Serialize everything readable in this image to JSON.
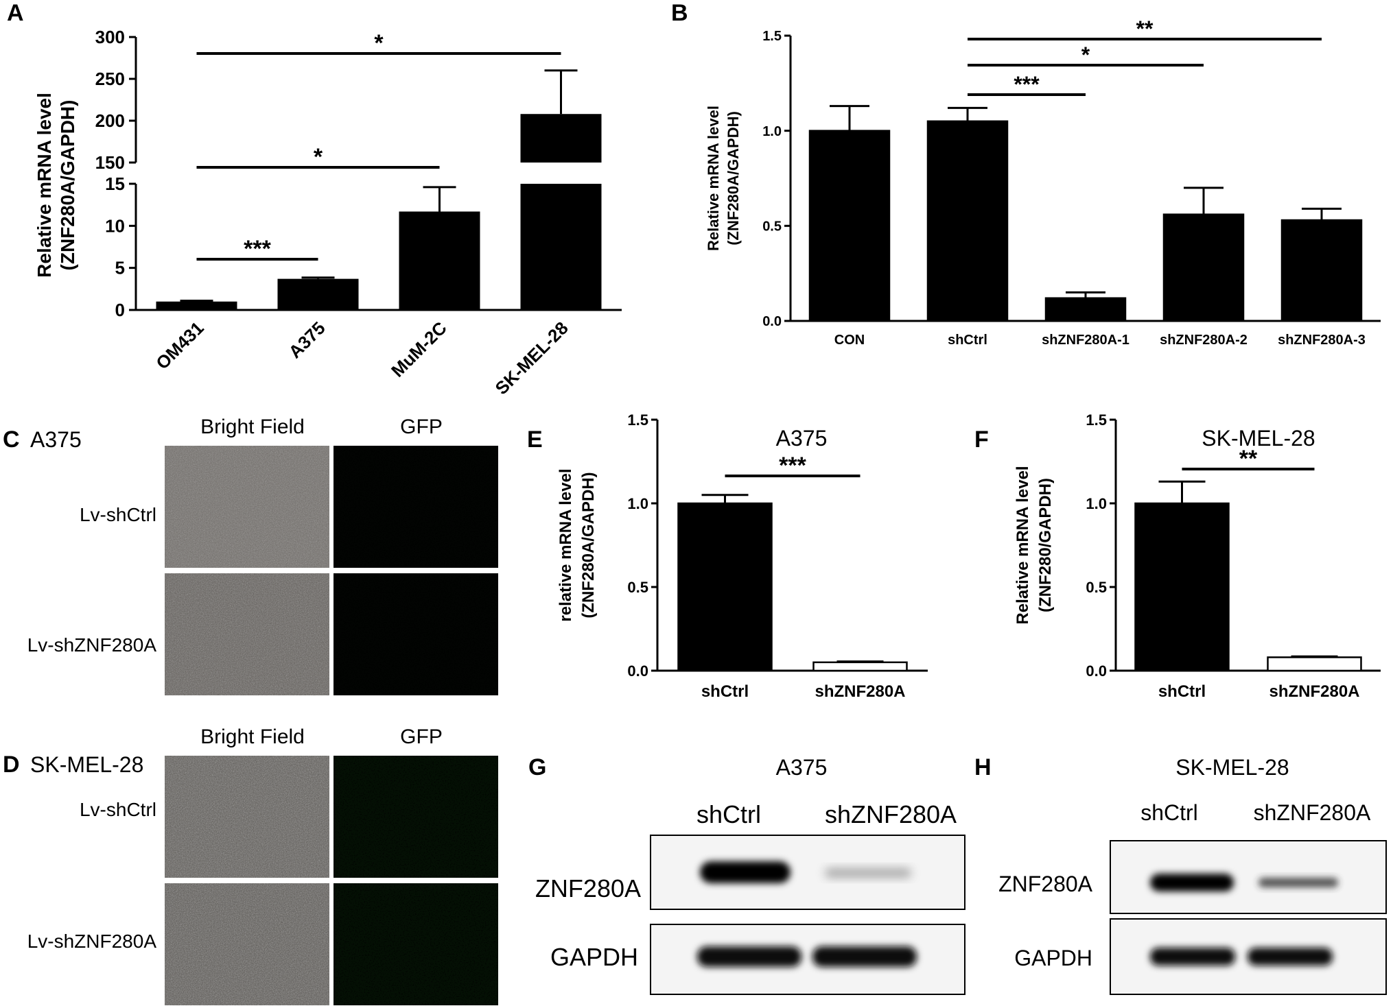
{
  "panel_labels": [
    "A",
    "B",
    "C",
    "D",
    "E",
    "F",
    "G",
    "H"
  ],
  "chart_data": [
    {
      "panel": "A",
      "type": "bar",
      "ylabel_lines": [
        "Relative mRNA level",
        "(ZNF280A/GAPDH)"
      ],
      "categories": [
        "OM431",
        "A375",
        "MuM-2C",
        "SK-MEL-28"
      ],
      "values": [
        1.0,
        3.7,
        11.7,
        208
      ],
      "errors": [
        0.1,
        0.15,
        2.9,
        52
      ],
      "broken_axis": {
        "lower": [
          0,
          15
        ],
        "upper": [
          150,
          300
        ]
      },
      "yticks_lower": [
        "0",
        "5",
        "10",
        "15"
      ],
      "yticks_upper": [
        "150",
        "200",
        "250",
        "300"
      ],
      "significance": [
        {
          "from": 0,
          "to": 1,
          "label": "***"
        },
        {
          "from": 0,
          "to": 2,
          "label": "*"
        },
        {
          "from": 0,
          "to": 3,
          "label": "*"
        }
      ]
    },
    {
      "panel": "B",
      "type": "bar",
      "ylabel_lines": [
        "Relative mRNA level",
        "(ZNF280A/GAPDH)"
      ],
      "categories": [
        "CON",
        "shCtrl",
        "shZNF280A-1",
        "shZNF280A-2",
        "shZNF280A-3"
      ],
      "values": [
        1.0,
        1.05,
        0.12,
        0.56,
        0.53
      ],
      "errors": [
        0.13,
        0.07,
        0.03,
        0.14,
        0.06
      ],
      "ylim": [
        0,
        1.5
      ],
      "yticks": [
        "0.0",
        "0.5",
        "1.0",
        "1.5"
      ],
      "significance": [
        {
          "from": 1,
          "to": 2,
          "label": "***"
        },
        {
          "from": 1,
          "to": 3,
          "label": "*"
        },
        {
          "from": 1,
          "to": 4,
          "label": "**"
        }
      ]
    },
    {
      "panel": "E",
      "type": "bar",
      "title": "A375",
      "ylabel_lines": [
        "relative mRNA level",
        "(ZNF280A/GAPDH)"
      ],
      "categories": [
        "shCtrl",
        "shZNF280A"
      ],
      "values": [
        1.0,
        0.05
      ],
      "errors": [
        0.05,
        0.005
      ],
      "ylim": [
        0,
        1.5
      ],
      "yticks": [
        "0.0",
        "0.5",
        "1.0",
        "1.5"
      ],
      "significance": [
        {
          "from": 0,
          "to": 1,
          "label": "***"
        }
      ]
    },
    {
      "panel": "F",
      "type": "bar",
      "title": "SK-MEL-28",
      "ylabel_lines": [
        "Relative mRNA level",
        "(ZNF280/GAPDH)"
      ],
      "categories": [
        "shCtrl",
        "shZNF280A"
      ],
      "values": [
        1.0,
        0.08
      ],
      "errors": [
        0.13,
        0.005
      ],
      "ylim": [
        0,
        1.5
      ],
      "yticks": [
        "0.0",
        "0.5",
        "1.0",
        "1.5"
      ],
      "significance": [
        {
          "from": 0,
          "to": 1,
          "label": "**"
        }
      ]
    }
  ],
  "micrographs": {
    "C": {
      "cell_line": "A375",
      "columns": [
        "Bright Field",
        "GFP"
      ],
      "rows": [
        "Lv-shCtrl",
        "Lv-shZNF280A"
      ]
    },
    "D": {
      "cell_line": "SK-MEL-28",
      "columns": [
        "Bright Field",
        "GFP"
      ],
      "rows": [
        "Lv-shCtrl",
        "Lv-shZNF280A"
      ]
    }
  },
  "blots": {
    "G": {
      "title": "A375",
      "lanes": [
        "shCtrl",
        "shZNF280A"
      ],
      "proteins": [
        "ZNF280A",
        "GAPDH"
      ]
    },
    "H": {
      "title": "SK-MEL-28",
      "lanes": [
        "shCtrl",
        "shZNF280A"
      ],
      "proteins": [
        "ZNF280A",
        "GAPDH"
      ]
    }
  },
  "colors": {
    "bar_fill": "#000000",
    "bar_open": "#ffffff",
    "gfp": "#22c232",
    "brightfield": "#6e6a66"
  }
}
